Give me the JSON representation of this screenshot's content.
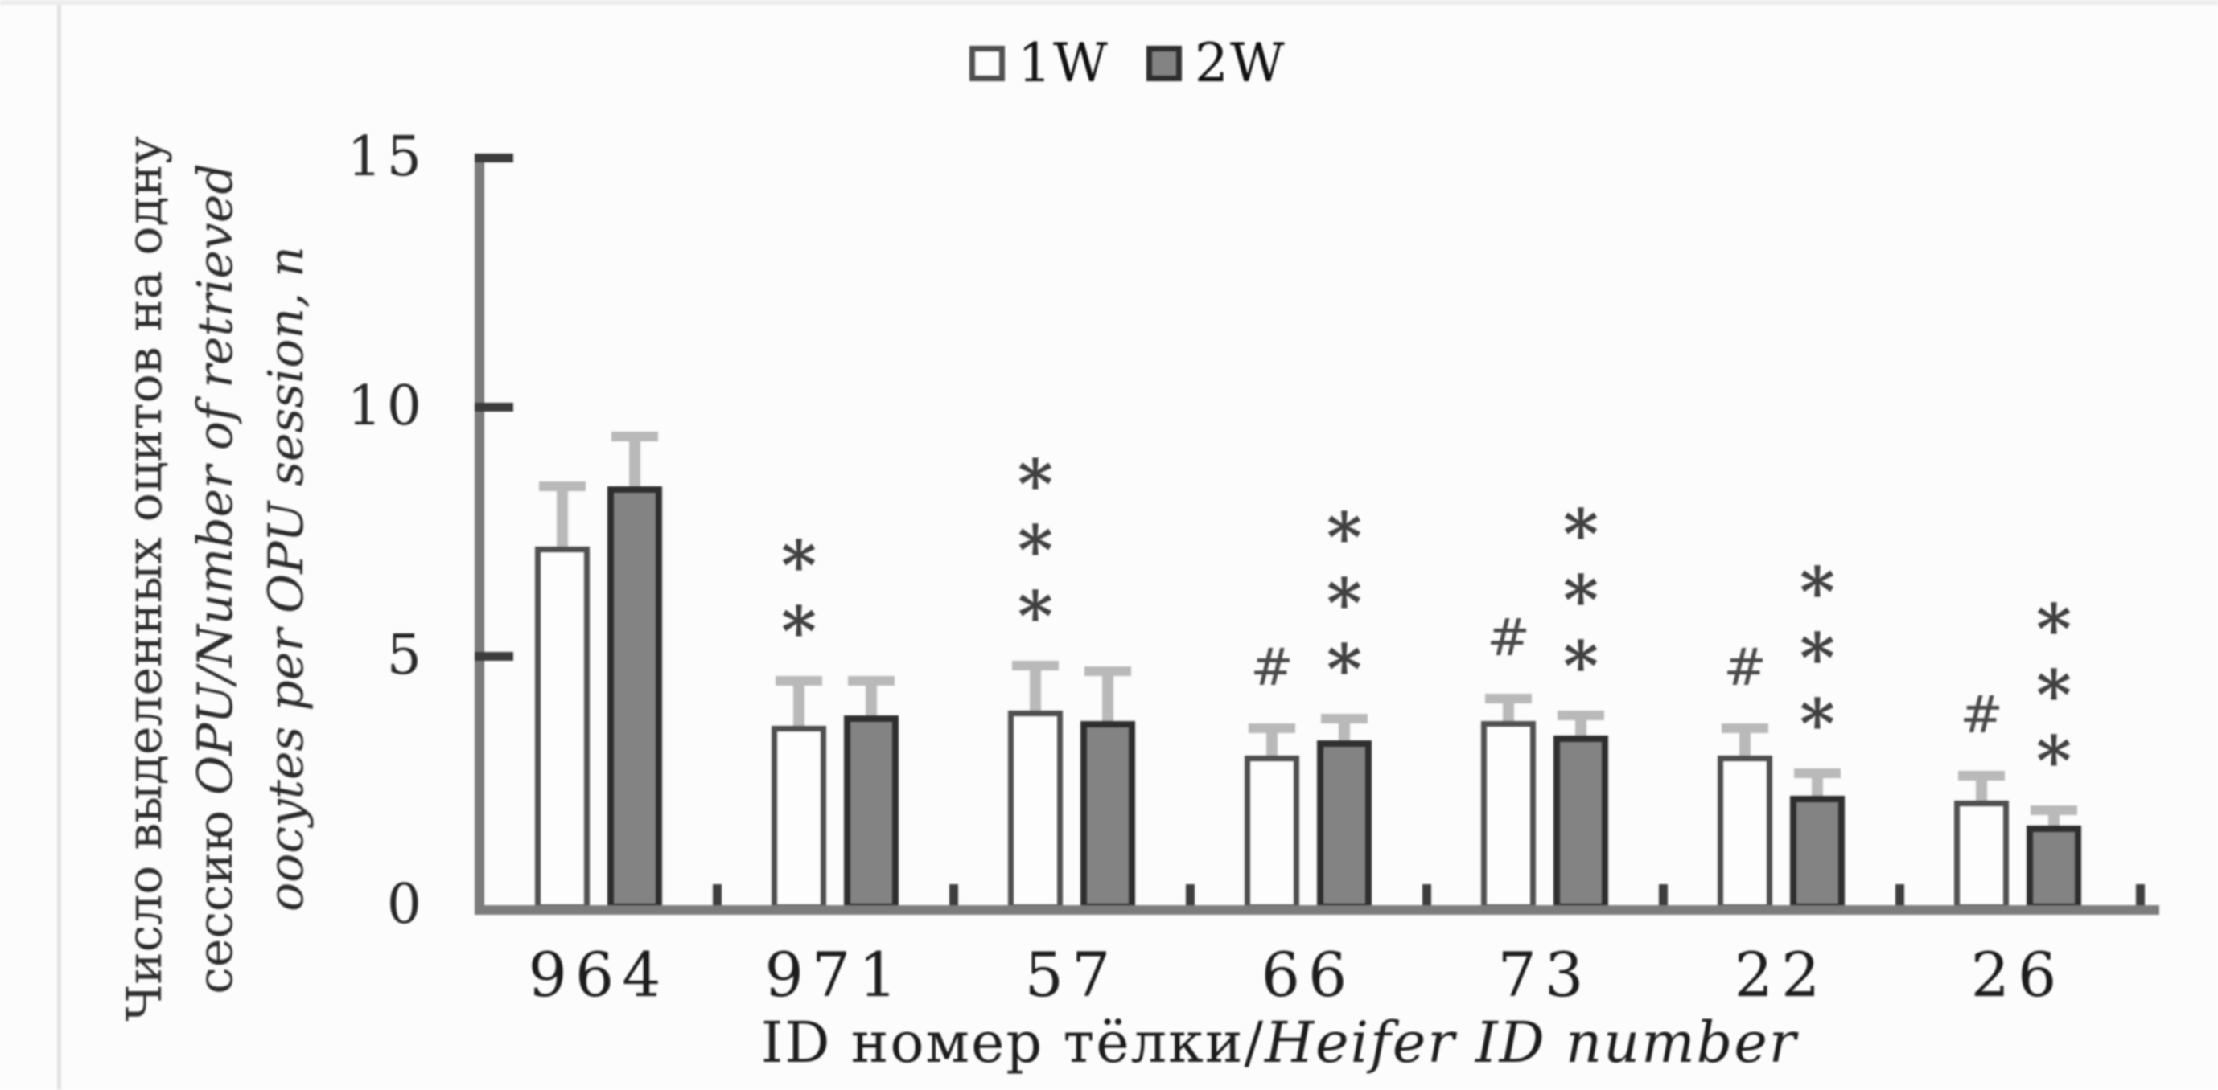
{
  "figure": {
    "background": "#fcfcfc",
    "style": "low-res scanned journal bar chart, grayscale"
  },
  "legend": {
    "position": "top-center",
    "items": [
      {
        "label": "1W",
        "swatch": "open-square",
        "fill": "#fdfdfd",
        "border": "#4f4f4f"
      },
      {
        "label": "2W",
        "swatch": "filled-square",
        "fill": "#838383",
        "border": "#2e2e2e"
      }
    ]
  },
  "y_axis": {
    "ticks": [
      "15",
      "10",
      "5",
      "0"
    ],
    "title_lines": [
      {
        "regular": "Число выделенных оцитов на одну",
        "italic": ""
      },
      {
        "regular": "сессию ",
        "italic": "OPU/Number of retrieved"
      },
      {
        "regular": "",
        "italic": "oocytes per OPU session, n"
      }
    ]
  },
  "x_axis": {
    "title_regular": "ID номер тёлки/",
    "title_italic": "Heifer ID number",
    "categories": [
      "964",
      "971",
      "57",
      "66",
      "73",
      "22",
      "26"
    ]
  },
  "chart_data": {
    "type": "bar",
    "title": "",
    "categories": [
      "964",
      "971",
      "57",
      "66",
      "73",
      "22",
      "26"
    ],
    "series": [
      {
        "name": "1W",
        "fill": "#fdfdfd",
        "border": "#4f4f4f",
        "values": [
          7.2,
          3.6,
          3.9,
          3.0,
          3.7,
          3.0,
          2.1
        ],
        "errors": [
          1.2,
          0.9,
          0.9,
          0.55,
          0.45,
          0.55,
          0.5
        ],
        "annotations": [
          "",
          "**",
          "***",
          "#",
          "#",
          "#",
          "#"
        ]
      },
      {
        "name": "2W",
        "fill": "#838383",
        "border": "#2e2e2e",
        "values": [
          8.4,
          3.8,
          3.7,
          3.3,
          3.4,
          2.2,
          1.6
        ],
        "errors": [
          1.0,
          0.7,
          1.0,
          0.45,
          0.4,
          0.45,
          0.3
        ],
        "annotations": [
          "",
          "",
          "",
          "***",
          "***",
          "***",
          "***"
        ]
      }
    ],
    "ylim": [
      0,
      15
    ],
    "yticks": [
      0,
      5,
      10,
      15
    ],
    "ylabel": "Число выделенных оцитов на одну сессию OPU/Number of retrieved oocytes per OPU session, n",
    "xlabel": "ID номер тёлки/Heifer ID number",
    "legend_position": "top-center",
    "grid": false,
    "error_bars": true,
    "annotation_note": "asterisk columns are stacked vertically above error caps; # sits above 1W error caps"
  }
}
